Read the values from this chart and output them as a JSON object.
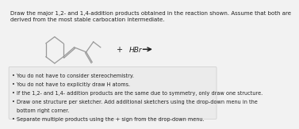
{
  "title_line1": "Draw the major 1,2- and 1,4-addition products obtained in the reaction shown. Assume that both are",
  "title_line2": "derived from the most stable carbocation intermediate.",
  "reagent": "HBr",
  "bullet_points": [
    "You do not have to consider stereochemistry.",
    "You do not have to explicitly draw H atoms.",
    "If the 1,2- and 1,4- addition products are the same due to symmetry, only draw one structure.",
    "Draw one structure per sketcher. Add additional sketchers using the drop-down menu in the",
    "   bottom right corner.",
    "Separate multiple products using the + sign from the drop-down menu."
  ],
  "bg_color": "#f2f2f2",
  "molecule_color": "#999999",
  "text_color": "#222222",
  "bullet_box_color": "#ebebeb",
  "bullet_box_border": "#cccccc"
}
